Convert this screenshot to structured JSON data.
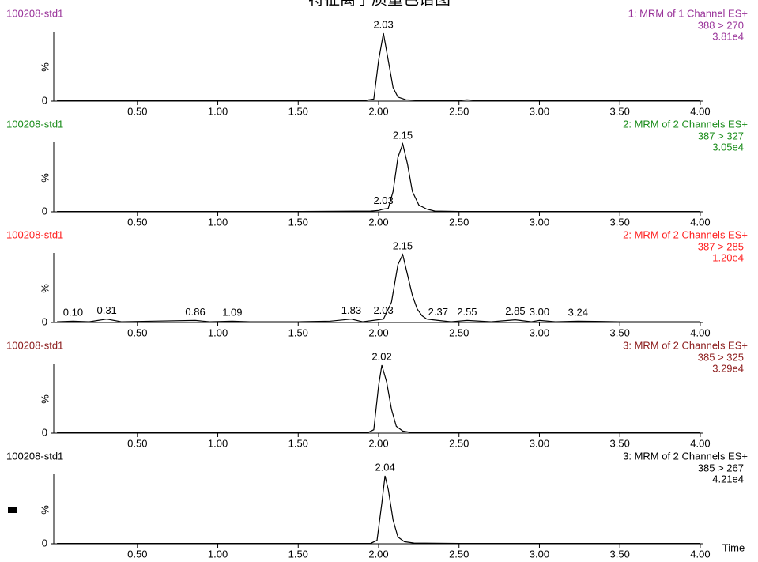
{
  "title": "特征离子质量色谱图",
  "chart_data": [
    {
      "type": "line",
      "sample": "100208-std1",
      "channel": "1: MRM of 1 Channel ES+",
      "transition": "388 > 270",
      "intensity": "3.81e4",
      "text_color": "#993399",
      "ylabel": "%",
      "xlim": [
        -0.02,
        4.02
      ],
      "ylim": [
        0,
        100
      ],
      "yticks": [
        0
      ],
      "xticks": [
        {
          "value": 0.5,
          "label": "0.50"
        },
        {
          "value": 1,
          "label": "1.00"
        },
        {
          "value": 1.5,
          "label": "1.50"
        },
        {
          "value": 2,
          "label": "2.00"
        },
        {
          "value": 2.5,
          "label": "2.50"
        },
        {
          "value": 3,
          "label": "3.00"
        },
        {
          "value": 3.5,
          "label": "3.50"
        },
        {
          "value": 4,
          "label": "4.00"
        }
      ],
      "series": [
        {
          "color": "#000000",
          "x": [
            0,
            0.5,
            1,
            1.5,
            1.9,
            1.97,
            2.0,
            2.03,
            2.06,
            2.09,
            2.12,
            2.17,
            2.25,
            2.5,
            2.55,
            2.6,
            3.0,
            3.5,
            4.0
          ],
          "values": [
            0.5,
            0.5,
            0.5,
            0.5,
            0.5,
            3,
            60,
            100,
            60,
            20,
            6,
            2,
            1,
            1,
            2,
            1,
            0.5,
            0.5,
            0.5
          ]
        }
      ],
      "peaks": [
        2.03
      ]
    },
    {
      "type": "line",
      "sample": "100208-std1",
      "channel": "2: MRM of 2 Channels ES+",
      "transition": "387 > 327",
      "intensity": "3.05e4",
      "text_color": "#1a8c1a",
      "ylabel": "%",
      "xlim": [
        -0.02,
        4.02
      ],
      "ylim": [
        0,
        100
      ],
      "yticks": [
        0
      ],
      "xticks": [
        {
          "value": 0.5,
          "label": "0.50"
        },
        {
          "value": 1,
          "label": "1.00"
        },
        {
          "value": 1.5,
          "label": "1.50"
        },
        {
          "value": 2,
          "label": "2.00"
        },
        {
          "value": 2.5,
          "label": "2.50"
        },
        {
          "value": 3,
          "label": "3.00"
        },
        {
          "value": 3.5,
          "label": "3.50"
        },
        {
          "value": 4,
          "label": "4.00"
        }
      ],
      "series": [
        {
          "color": "#000000",
          "x": [
            0,
            0.5,
            1,
            1.5,
            1.95,
            2.0,
            2.03,
            2.06,
            2.09,
            2.12,
            2.15,
            2.18,
            2.21,
            2.25,
            2.3,
            2.35,
            2.5,
            3.0,
            4.0
          ],
          "values": [
            0.5,
            0.5,
            0.5,
            0.5,
            1,
            2,
            4,
            5,
            30,
            80,
            100,
            70,
            30,
            10,
            4,
            1,
            0.5,
            0.5,
            0.5
          ]
        }
      ],
      "peaks": [
        2.03,
        2.15
      ]
    },
    {
      "type": "line",
      "sample": "100208-std1",
      "channel": "2: MRM of 2 Channels ES+",
      "transition": "387 > 285",
      "intensity": "1.20e4",
      "text_color": "#ff2020",
      "ylabel": "%",
      "xlim": [
        -0.02,
        4.02
      ],
      "ylim": [
        0,
        100
      ],
      "yticks": [
        0
      ],
      "xticks": [
        {
          "value": 0.5,
          "label": "0.50"
        },
        {
          "value": 1,
          "label": "1.00"
        },
        {
          "value": 1.5,
          "label": "1.50"
        },
        {
          "value": 2,
          "label": "2.00"
        },
        {
          "value": 2.5,
          "label": "2.50"
        },
        {
          "value": 3,
          "label": "3.00"
        },
        {
          "value": 3.5,
          "label": "3.50"
        },
        {
          "value": 4,
          "label": "4.00"
        }
      ],
      "series": [
        {
          "color": "#000000",
          "x": [
            0,
            0.1,
            0.2,
            0.31,
            0.4,
            0.6,
            0.86,
            0.95,
            1.09,
            1.2,
            1.5,
            1.7,
            1.83,
            1.9,
            2.03,
            2.08,
            2.12,
            2.15,
            2.18,
            2.21,
            2.24,
            2.27,
            2.3,
            2.37,
            2.45,
            2.55,
            2.7,
            2.85,
            2.95,
            3.0,
            3.1,
            3.24,
            3.5,
            4.0
          ],
          "values": [
            1,
            2,
            1,
            5,
            1,
            2,
            3,
            1,
            2,
            1,
            1,
            2,
            5,
            1,
            5,
            30,
            85,
            100,
            70,
            40,
            20,
            10,
            5,
            3,
            1,
            3,
            1,
            4,
            1,
            3,
            1,
            2,
            1,
            1
          ]
        }
      ],
      "peaks": [
        {
          "value": 0.1,
          "label": "0.10"
        },
        0.31,
        0.86,
        1.09,
        1.83,
        2.03,
        2.15,
        2.37,
        2.55,
        2.85,
        {
          "value": 3,
          "label": "3.00"
        },
        3.24
      ]
    },
    {
      "type": "line",
      "sample": "100208-std1",
      "channel": "3: MRM of 2 Channels ES+",
      "transition": "385 > 325",
      "intensity": "3.29e4",
      "text_color": "#8b1a1a",
      "ylabel": "%",
      "xlim": [
        -0.02,
        4.02
      ],
      "ylim": [
        0,
        100
      ],
      "yticks": [
        0
      ],
      "xticks": [
        {
          "value": 0.5,
          "label": "0.50"
        },
        {
          "value": 1,
          "label": "1.00"
        },
        {
          "value": 1.5,
          "label": "1.50"
        },
        {
          "value": 2,
          "label": "2.00"
        },
        {
          "value": 2.5,
          "label": "2.50"
        },
        {
          "value": 3,
          "label": "3.00"
        },
        {
          "value": 3.5,
          "label": "3.50"
        },
        {
          "value": 4,
          "label": "4.00"
        }
      ],
      "series": [
        {
          "color": "#000000",
          "x": [
            0,
            0.5,
            1,
            1.5,
            1.93,
            1.97,
            2.0,
            2.02,
            2.05,
            2.08,
            2.11,
            2.15,
            2.2,
            2.5,
            3.0,
            4.0
          ],
          "values": [
            0.5,
            0.5,
            0.5,
            0.5,
            0.5,
            5,
            70,
            100,
            75,
            35,
            10,
            3,
            1,
            0.5,
            0.5,
            0.5
          ]
        }
      ],
      "peaks": [
        2.02
      ]
    },
    {
      "type": "line",
      "sample": "100208-std1",
      "channel": "3: MRM of 2 Channels ES+",
      "transition": "385 > 267",
      "intensity": "4.21e4",
      "text_color": "#000000",
      "ylabel": "%",
      "xlabel": "Time",
      "xlim": [
        -0.02,
        4.02
      ],
      "ylim": [
        0,
        100
      ],
      "yticks": [
        0
      ],
      "xticks": [
        {
          "value": 0.5,
          "label": "0.50"
        },
        {
          "value": 1,
          "label": "1.00"
        },
        {
          "value": 1.5,
          "label": "1.50"
        },
        {
          "value": 2,
          "label": "2.00"
        },
        {
          "value": 2.5,
          "label": "2.50"
        },
        {
          "value": 3,
          "label": "3.00"
        },
        {
          "value": 3.5,
          "label": "3.50"
        },
        {
          "value": 4,
          "label": "4.00"
        }
      ],
      "series": [
        {
          "color": "#000000",
          "x": [
            0,
            0.5,
            1,
            1.5,
            1.95,
            1.99,
            2.02,
            2.04,
            2.06,
            2.09,
            2.12,
            2.16,
            2.22,
            2.5,
            3.0,
            4.0
          ],
          "values": [
            0.5,
            0.5,
            0.5,
            0.5,
            0.5,
            5,
            60,
            100,
            80,
            35,
            10,
            3,
            1,
            0.5,
            0.5,
            0.5
          ]
        }
      ],
      "peaks": [
        2.04
      ]
    }
  ]
}
